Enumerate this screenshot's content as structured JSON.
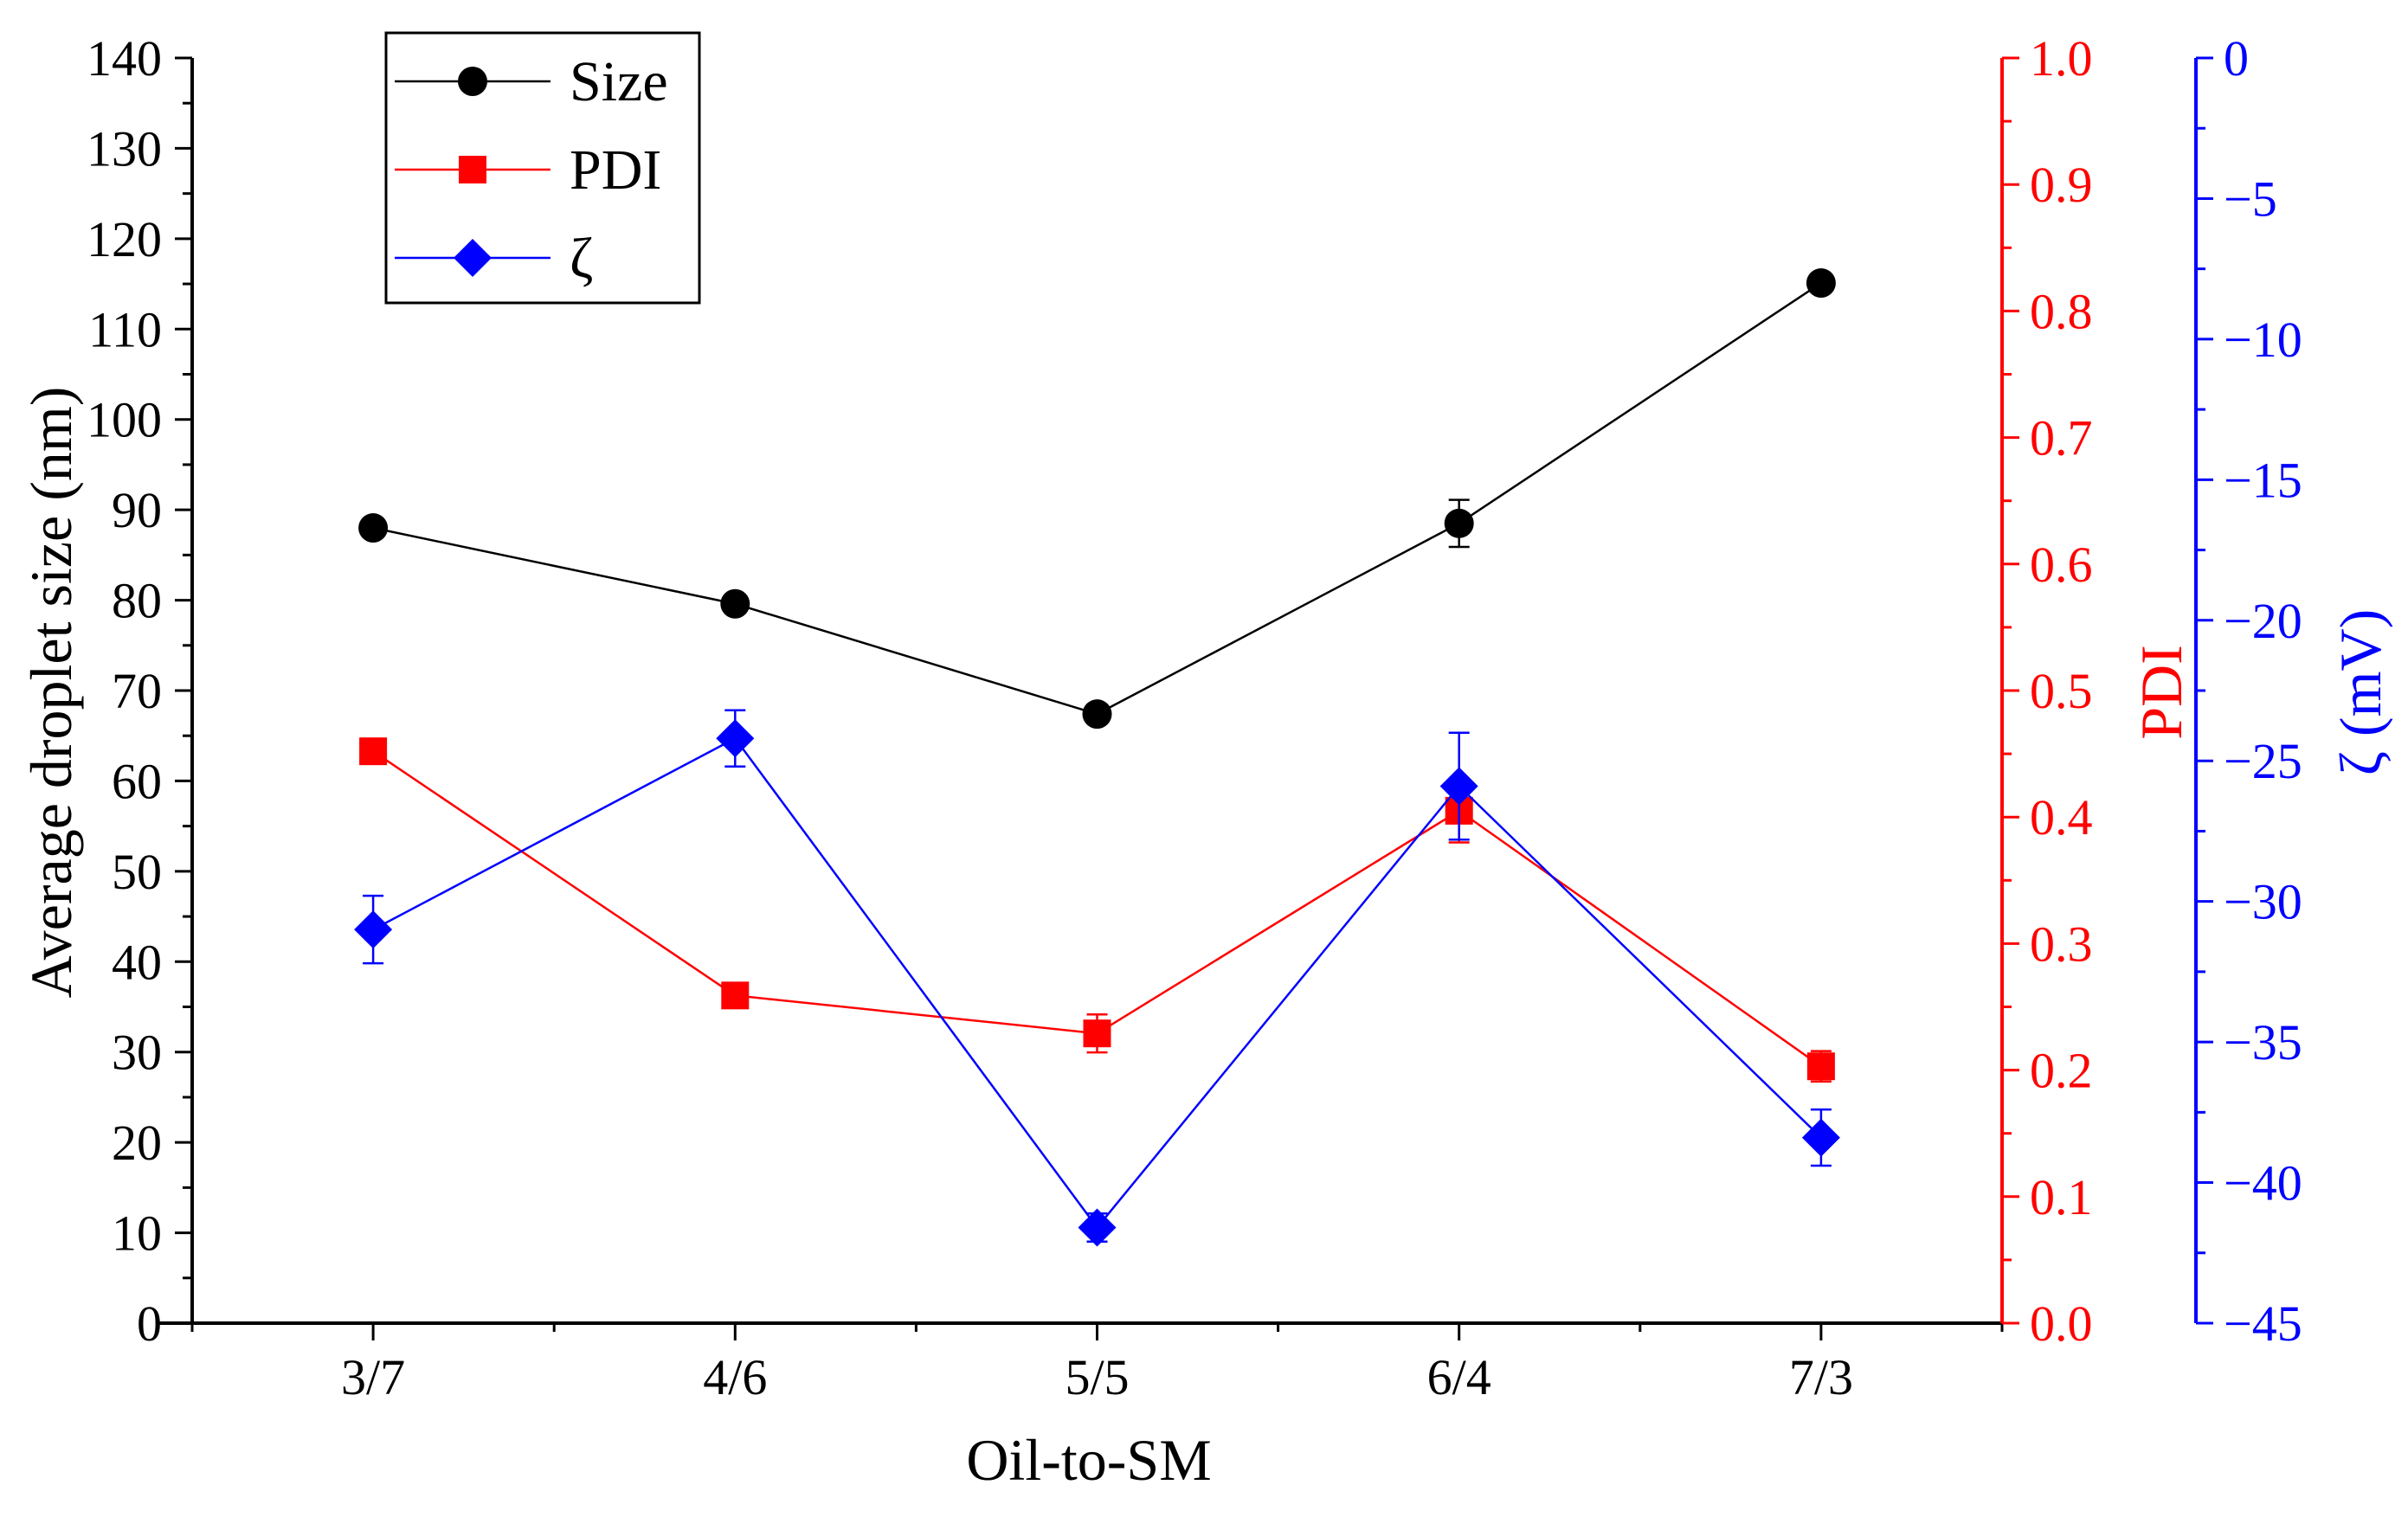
{
  "chart_data": {
    "type": "line",
    "categories": [
      "3/7",
      "4/6",
      "5/5",
      "6/4",
      "7/3"
    ],
    "xlabel": "Oil-to-SM",
    "axes": {
      "left": {
        "label": "Average droplet size (nm)",
        "range": [
          0,
          140
        ],
        "ticks": [
          "0",
          "10",
          "20",
          "30",
          "40",
          "50",
          "60",
          "70",
          "80",
          "90",
          "100",
          "110",
          "120",
          "130",
          "140"
        ],
        "color": "#000000"
      },
      "right1": {
        "label": "PDI",
        "range": [
          0,
          1.0
        ],
        "ticks": [
          "0.0",
          "0.1",
          "0.2",
          "0.3",
          "0.4",
          "0.5",
          "0.6",
          "0.7",
          "0.8",
          "0.9",
          "1.0"
        ],
        "color": "#ff0000"
      },
      "right2": {
        "label": "ζ (mV)",
        "range": [
          -45,
          0
        ],
        "ticks": [
          "−45",
          "−40",
          "−35",
          "−30",
          "−25",
          "−20",
          "−15",
          "−10",
          "−5",
          "0"
        ],
        "color": "#0000ff"
      }
    },
    "series": [
      {
        "name": "Size",
        "axis": "left",
        "color": "#000000",
        "marker": "circle",
        "values": [
          88.0,
          79.6,
          67.4,
          88.5,
          115.1
        ],
        "errors": [
          0.8,
          0.8,
          0.6,
          2.6,
          0.6
        ]
      },
      {
        "name": "PDI",
        "axis": "right1",
        "color": "#ff0000",
        "marker": "square",
        "values": [
          0.452,
          0.259,
          0.229,
          0.405,
          0.203
        ],
        "errors": [
          0.004,
          0.004,
          0.015,
          0.025,
          0.012
        ]
      },
      {
        "name": "ζ",
        "axis": "right2",
        "color": "#0000ff",
        "marker": "diamond",
        "values": [
          -31.0,
          -24.2,
          -41.6,
          -25.9,
          -38.4
        ],
        "errors": [
          1.2,
          1.0,
          0.5,
          1.9,
          1.0
        ]
      }
    ],
    "legend": {
      "position": "top-left",
      "entries": [
        "Size",
        "PDI",
        "ζ"
      ]
    }
  }
}
